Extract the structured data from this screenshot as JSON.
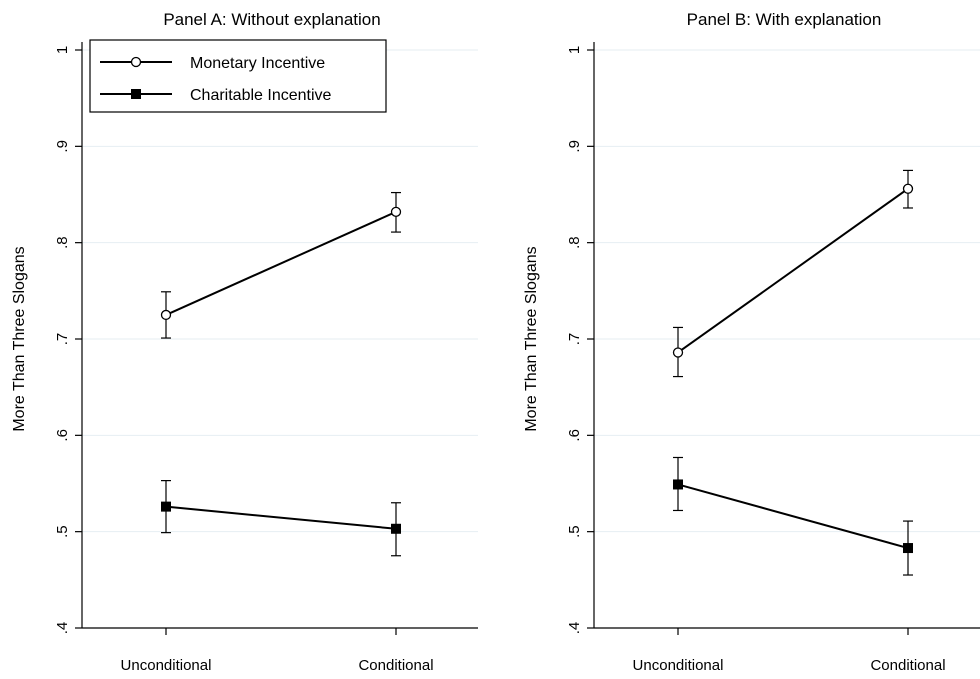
{
  "chart_data": [
    {
      "type": "line",
      "title": "Panel A: Without explanation",
      "xlabel": "",
      "ylabel": "More Than Three Slogans",
      "categories": [
        "Unconditional",
        "Conditional"
      ],
      "ylim": [
        0.4,
        1.0
      ],
      "yticks": [
        ".4",
        ".5",
        ".6",
        ".7",
        ".8",
        ".9",
        "1"
      ],
      "grid": true,
      "legend": "top-left",
      "series": [
        {
          "name": "Monetary Incentive",
          "marker": "hollow-circle",
          "values": [
            0.725,
            0.832
          ],
          "lower": [
            0.701,
            0.811
          ],
          "upper": [
            0.749,
            0.852
          ]
        },
        {
          "name": "Charitable Incentive",
          "marker": "filled-square",
          "values": [
            0.526,
            0.503
          ],
          "lower": [
            0.499,
            0.475
          ],
          "upper": [
            0.553,
            0.53
          ]
        }
      ]
    },
    {
      "type": "line",
      "title": "Panel B: With explanation",
      "xlabel": "",
      "ylabel": "More Than Three Slogans",
      "categories": [
        "Unconditional",
        "Conditional"
      ],
      "ylim": [
        0.4,
        1.0
      ],
      "yticks": [
        ".4",
        ".5",
        ".6",
        ".7",
        ".8",
        ".9",
        "1"
      ],
      "grid": true,
      "series": [
        {
          "name": "Monetary Incentive",
          "marker": "hollow-circle",
          "values": [
            0.686,
            0.856
          ],
          "lower": [
            0.661,
            0.836
          ],
          "upper": [
            0.712,
            0.875
          ]
        },
        {
          "name": "Charitable Incentive",
          "marker": "filled-square",
          "values": [
            0.549,
            0.483
          ],
          "lower": [
            0.522,
            0.455
          ],
          "upper": [
            0.577,
            0.511
          ]
        }
      ]
    }
  ]
}
